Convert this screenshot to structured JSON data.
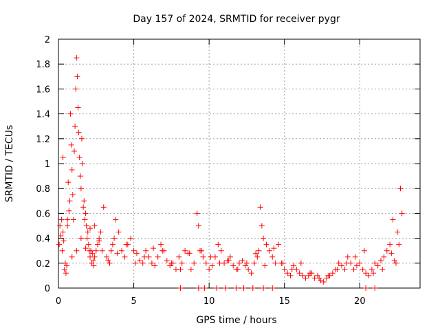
{
  "chart_data": {
    "type": "scatter",
    "title": "Day 157 of 2024, SRMTID for receiver pygr",
    "xlabel": "GPS time / hours",
    "ylabel": "SRMTID / TECUs",
    "xlim": [
      0,
      24
    ],
    "ylim": [
      0,
      2
    ],
    "x_ticks": [
      0,
      5,
      10,
      15,
      20
    ],
    "x_tick_labels": [
      "0",
      "5",
      "10",
      "15",
      "20"
    ],
    "y_ticks": [
      0,
      0.2,
      0.4,
      0.6,
      0.8,
      1,
      1.2,
      1.4,
      1.6,
      1.8,
      2
    ],
    "y_tick_labels": [
      "0",
      "0.2",
      "0.4",
      "0.6",
      "0.8",
      "1",
      "1.2",
      "1.4",
      "1.6",
      "1.8",
      "2"
    ],
    "grid": true,
    "marker": "+",
    "marker_color": "#ff0000",
    "series": [
      {
        "name": "SRMTID",
        "x": [
          0.05,
          0.1,
          0.15,
          0.2,
          0.25,
          0.3,
          0.35,
          0.4,
          0.45,
          0.5,
          0.55,
          0.6,
          0.65,
          0.7,
          0.75,
          0.8,
          0.85,
          0.9,
          0.95,
          1.0,
          1.05,
          1.1,
          1.15,
          1.2,
          1.25,
          1.3,
          1.35,
          1.4,
          1.45,
          1.5,
          1.55,
          1.6,
          1.65,
          1.7,
          1.75,
          1.8,
          1.85,
          1.9,
          1.95,
          2.0,
          2.05,
          2.1,
          2.15,
          2.2,
          2.25,
          2.3,
          2.35,
          2.4,
          2.5,
          2.6,
          2.7,
          2.8,
          2.9,
          3.0,
          3.2,
          3.4,
          3.5,
          3.6,
          3.7,
          3.8,
          4.0,
          4.2,
          4.4,
          4.6,
          4.8,
          5.0,
          5.2,
          5.4,
          5.6,
          5.8,
          6.0,
          6.2,
          6.4,
          6.6,
          6.8,
          7.0,
          7.2,
          7.4,
          7.6,
          7.8,
          8.0,
          8.2,
          8.4,
          8.6,
          8.8,
          9.0,
          9.2,
          9.3,
          9.4,
          9.6,
          9.8,
          10.0,
          10.2,
          10.4,
          10.6,
          10.8,
          11.0,
          11.2,
          11.4,
          11.6,
          11.8,
          12.0,
          12.2,
          12.4,
          12.6,
          12.8,
          13.0,
          13.2,
          13.3,
          13.4,
          13.5,
          13.6,
          13.8,
          14.0,
          14.2,
          14.4,
          14.6,
          14.8,
          15.0,
          15.2,
          15.4,
          15.6,
          15.8,
          16.0,
          16.2,
          16.4,
          16.6,
          16.8,
          17.0,
          17.2,
          17.4,
          17.6,
          17.8,
          18.0,
          18.2,
          18.4,
          18.6,
          18.8,
          19.0,
          19.2,
          19.4,
          19.6,
          19.8,
          20.0,
          20.2,
          20.4,
          20.6,
          20.8,
          21.0,
          21.2,
          21.4,
          21.6,
          21.8,
          22.0,
          22.2,
          22.4,
          22.5,
          22.6,
          22.7,
          22.8,
          0.3,
          0.6,
          0.9,
          1.2,
          1.5,
          1.8,
          2.1,
          2.4,
          2.7,
          3.3,
          3.9,
          4.5,
          5.1,
          5.7,
          6.3,
          6.9,
          7.5,
          8.1,
          8.7,
          9.5,
          10.1,
          10.7,
          11.3,
          11.9,
          12.5,
          13.1,
          13.7,
          14.3,
          14.9,
          15.5,
          16.1,
          16.7,
          17.3,
          17.9,
          18.5,
          19.1,
          19.7,
          20.3,
          20.9,
          21.5,
          22.1,
          22.3,
          8.1,
          9.3,
          9.7,
          10.5,
          11.1,
          11.8,
          12.3,
          12.9,
          13.6,
          14.2,
          20.4,
          21.0
        ],
        "y": [
          0.35,
          0.5,
          0.42,
          0.55,
          0.3,
          0.45,
          0.38,
          0.15,
          0.2,
          0.12,
          0.18,
          0.5,
          0.85,
          0.62,
          0.7,
          1.4,
          1.15,
          0.95,
          0.75,
          0.55,
          1.1,
          1.3,
          1.6,
          1.85,
          1.7,
          1.45,
          1.25,
          1.05,
          0.9,
          0.8,
          1.2,
          1.0,
          0.65,
          0.7,
          0.55,
          0.6,
          0.5,
          0.4,
          0.45,
          0.35,
          0.3,
          0.25,
          0.3,
          0.2,
          0.28,
          0.22,
          0.18,
          0.25,
          0.3,
          0.35,
          0.4,
          0.45,
          0.3,
          0.65,
          0.25,
          0.2,
          0.3,
          0.35,
          0.4,
          0.55,
          0.45,
          0.3,
          0.25,
          0.35,
          0.4,
          0.3,
          0.28,
          0.22,
          0.2,
          0.3,
          0.25,
          0.2,
          0.18,
          0.25,
          0.35,
          0.3,
          0.22,
          0.18,
          0.2,
          0.15,
          0.25,
          0.2,
          0.3,
          0.28,
          0.15,
          0.2,
          0.6,
          0.5,
          0.3,
          0.25,
          0.2,
          0.15,
          0.18,
          0.25,
          0.35,
          0.3,
          0.2,
          0.22,
          0.25,
          0.18,
          0.15,
          0.2,
          0.22,
          0.18,
          0.15,
          0.12,
          0.2,
          0.25,
          0.3,
          0.65,
          0.5,
          0.4,
          0.35,
          0.3,
          0.25,
          0.2,
          0.35,
          0.2,
          0.15,
          0.12,
          0.1,
          0.18,
          0.15,
          0.12,
          0.1,
          0.08,
          0.1,
          0.12,
          0.08,
          0.1,
          0.06,
          0.05,
          0.08,
          0.1,
          0.12,
          0.15,
          0.2,
          0.18,
          0.15,
          0.25,
          0.2,
          0.15,
          0.18,
          0.2,
          0.15,
          0.12,
          0.1,
          0.15,
          0.2,
          0.18,
          0.22,
          0.25,
          0.3,
          0.35,
          0.55,
          0.2,
          0.45,
          0.35,
          0.8,
          0.6,
          1.05,
          0.55,
          0.25,
          0.3,
          0.4,
          0.32,
          0.48,
          0.5,
          0.38,
          0.22,
          0.28,
          0.35,
          0.2,
          0.25,
          0.32,
          0.3,
          0.2,
          0.15,
          0.28,
          0.3,
          0.25,
          0.2,
          0.22,
          0.15,
          0.2,
          0.28,
          0.18,
          0.32,
          0.2,
          0.15,
          0.2,
          0.12,
          0.08,
          0.1,
          0.15,
          0.2,
          0.25,
          0.3,
          0.12,
          0.15,
          0.28,
          0.22,
          0.0,
          0.0,
          0.0,
          0.0,
          0.0,
          0.0,
          0.0,
          0.0,
          0.0,
          0.0,
          0.0,
          0.0
        ]
      }
    ]
  }
}
